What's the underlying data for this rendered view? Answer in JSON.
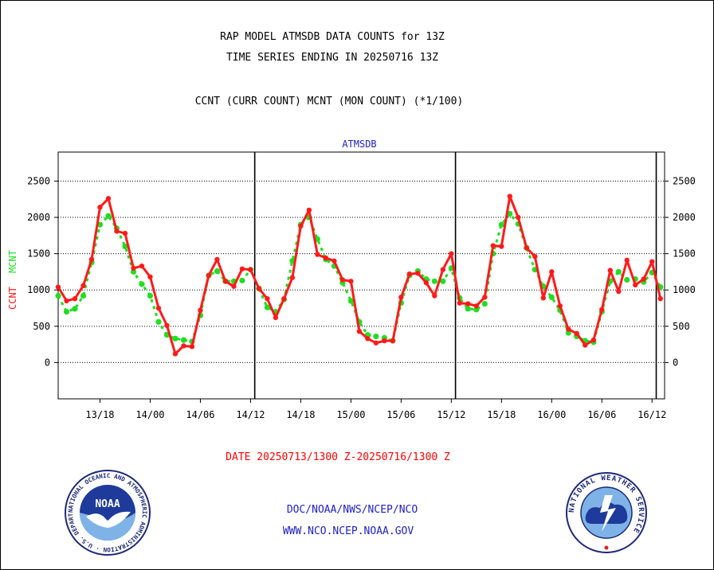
{
  "header": {
    "title_line1": "RAP MODEL ATMSDB DATA COUNTS for 13Z",
    "title_line2": "TIME SERIES ENDING IN 20250716 13Z",
    "subtitle": "CCNT (CURR COUNT) MCNT (MON COUNT) (*1/100)"
  },
  "footer": {
    "date_range": "DATE 20250713/1300 Z-20250716/1300 Z",
    "org_path": "DOC/NOAA/NWS/NCEP/NCO",
    "url": "WWW.NCO.NCEP.NOAA.GOV"
  },
  "logos": {
    "noaa_text": "NOAA",
    "noaa_ring": "NATIONAL OCEANIC AND ATMOSPHERIC ADMINISTRATION · U.S. DEPARTMENT OF COMMERCE",
    "nws_ring": "NATIONAL WEATHER SERVICE"
  },
  "colors": {
    "ccnt": "#ff1a1a",
    "mcnt": "#22dd22",
    "date_text": "#ff0000",
    "blue_text": "#1e1ec8",
    "axis": "#000000"
  },
  "chart_data": {
    "type": "line",
    "title": "ATMSDB",
    "ylabel_left_ccnt": "CCNT",
    "ylabel_left_mcnt": "MCNT",
    "ylim": [
      -500,
      2900
    ],
    "xlim": [
      0,
      72.5
    ],
    "yticks": [
      0,
      500,
      1000,
      1500,
      2000,
      2500
    ],
    "ytick_labels": [
      "0",
      "500",
      "1000",
      "1500",
      "2000",
      "2500"
    ],
    "xticks": [
      {
        "x": 5,
        "label": "13/18"
      },
      {
        "x": 11,
        "label": "14/00"
      },
      {
        "x": 17,
        "label": "14/06"
      },
      {
        "x": 23,
        "label": "14/12"
      },
      {
        "x": 29,
        "label": "14/18"
      },
      {
        "x": 35,
        "label": "15/00"
      },
      {
        "x": 41,
        "label": "15/06"
      },
      {
        "x": 47,
        "label": "15/12"
      },
      {
        "x": 53,
        "label": "15/18"
      },
      {
        "x": 59,
        "label": "16/00"
      },
      {
        "x": 65,
        "label": "16/06"
      },
      {
        "x": 71,
        "label": "16/12"
      }
    ],
    "day_dividers": [
      23.5,
      47.5,
      71.5
    ],
    "grid": true,
    "series": [
      {
        "name": "CCNT",
        "x": [
          0,
          1,
          2,
          3,
          4,
          5,
          6,
          7,
          8,
          9,
          10,
          11,
          12,
          13,
          14,
          15,
          16,
          17,
          18,
          19,
          20,
          21,
          22,
          23,
          24,
          25,
          26,
          27,
          28,
          29,
          30,
          31,
          32,
          33,
          34,
          35,
          36,
          37,
          38,
          39,
          40,
          41,
          42,
          43,
          44,
          45,
          46,
          47,
          48,
          49,
          50,
          51,
          52,
          53,
          54,
          55,
          56,
          57,
          58,
          59,
          60,
          61,
          62,
          63,
          64,
          65,
          66,
          67,
          68,
          69,
          70,
          71,
          72
        ],
        "values": [
          1040,
          850,
          880,
          1060,
          1420,
          2140,
          2260,
          1810,
          1780,
          1300,
          1330,
          1180,
          750,
          510,
          120,
          230,
          220,
          720,
          1200,
          1420,
          1120,
          1050,
          1290,
          1280,
          1020,
          880,
          620,
          880,
          1170,
          1880,
          2100,
          1490,
          1440,
          1400,
          1140,
          1120,
          430,
          330,
          270,
          300,
          300,
          900,
          1220,
          1230,
          1100,
          920,
          1280,
          1500,
          820,
          810,
          780,
          900,
          1610,
          1600,
          2290,
          2000,
          1580,
          1460,
          890,
          1250,
          780,
          460,
          400,
          240,
          310,
          730,
          1270,
          980,
          1410,
          1070,
          1150,
          1390,
          880
        ]
      },
      {
        "name": "MCNT",
        "x": [
          0,
          1,
          2,
          3,
          4,
          5,
          6,
          7,
          8,
          9,
          10,
          11,
          12,
          13,
          14,
          15,
          16,
          17,
          18,
          19,
          20,
          21,
          22,
          23,
          24,
          25,
          26,
          27,
          28,
          29,
          30,
          31,
          32,
          33,
          34,
          35,
          36,
          37,
          38,
          39,
          40,
          41,
          42,
          43,
          44,
          45,
          46,
          47,
          48,
          49,
          50,
          51,
          52,
          53,
          54,
          55,
          56,
          57,
          58,
          59,
          60,
          61,
          62,
          63,
          64,
          65,
          66,
          67,
          68,
          69,
          70,
          71,
          72
        ],
        "values": [
          920,
          700,
          740,
          920,
          1380,
          1900,
          2020,
          1850,
          1600,
          1250,
          1080,
          920,
          560,
          380,
          330,
          310,
          290,
          650,
          1200,
          1260,
          1120,
          1120,
          1130,
          1280,
          1020,
          760,
          700,
          870,
          1400,
          1900,
          2000,
          1700,
          1420,
          1330,
          1100,
          850,
          560,
          380,
          360,
          340,
          300,
          820,
          1200,
          1260,
          1150,
          1120,
          1120,
          1300,
          890,
          740,
          730,
          810,
          1500,
          1900,
          2050,
          1910,
          1580,
          1280,
          1050,
          900,
          720,
          410,
          360,
          300,
          280,
          700,
          1120,
          1250,
          1140,
          1150,
          1110,
          1240,
          1040
        ]
      }
    ]
  }
}
